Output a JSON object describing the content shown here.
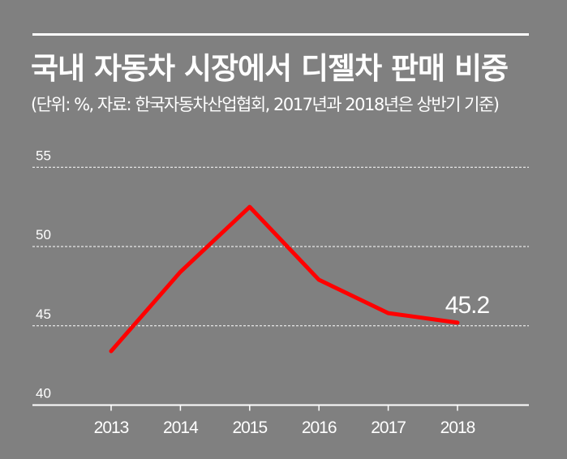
{
  "chart_data": {
    "type": "line",
    "title": "국내 자동차 시장에서 디젤차 판매 비중",
    "subtitle": "(단위: %, 자료: 한국자동차산업협회, 2017년과 2018년은 상반기 기준)",
    "xlabel": "",
    "ylabel": "",
    "categories": [
      "2013",
      "2014",
      "2015",
      "2016",
      "2017",
      "2018"
    ],
    "series": [
      {
        "values": [
          43.4,
          48.4,
          52.5,
          47.9,
          45.8,
          45.2
        ],
        "color": "#ff0000"
      }
    ],
    "ylim": [
      40,
      55
    ],
    "yticks": [
      "40",
      "45",
      "50",
      "55"
    ],
    "grid": true,
    "annotations": [
      {
        "x": "2018",
        "text": "45.2"
      }
    ],
    "background": "#808080"
  }
}
